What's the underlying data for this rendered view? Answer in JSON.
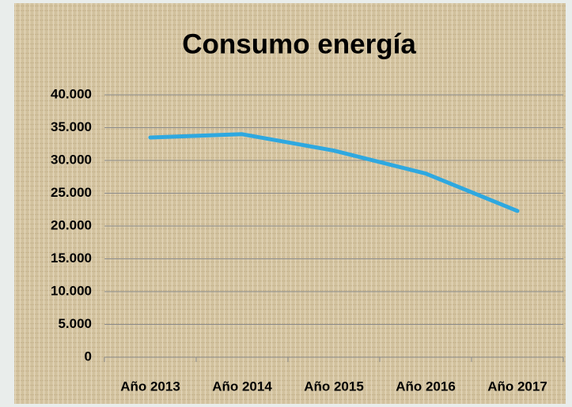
{
  "chart_data": {
    "type": "line",
    "title": "Consumo energía",
    "categories": [
      "Año 2013",
      "Año 2014",
      "Año 2015",
      "Año 2016",
      "Año 2017"
    ],
    "values": [
      33500,
      34000,
      31500,
      28000,
      22300
    ],
    "color": "#2ea8e0",
    "ylim": [
      0,
      40000
    ],
    "yticks": [
      0,
      {
        "value": 5000,
        "label": "5.000"
      },
      {
        "value": 10000,
        "label": "10.000"
      },
      {
        "value": 15000,
        "label": "15.000"
      },
      {
        "value": 20000,
        "label": "20.000"
      },
      {
        "value": 25000,
        "label": "25.000"
      },
      {
        "value": 30000,
        "label": "30.000"
      },
      {
        "value": 35000,
        "label": "35.000"
      },
      {
        "value": 40000,
        "label": "40.000"
      }
    ],
    "grid": true
  }
}
